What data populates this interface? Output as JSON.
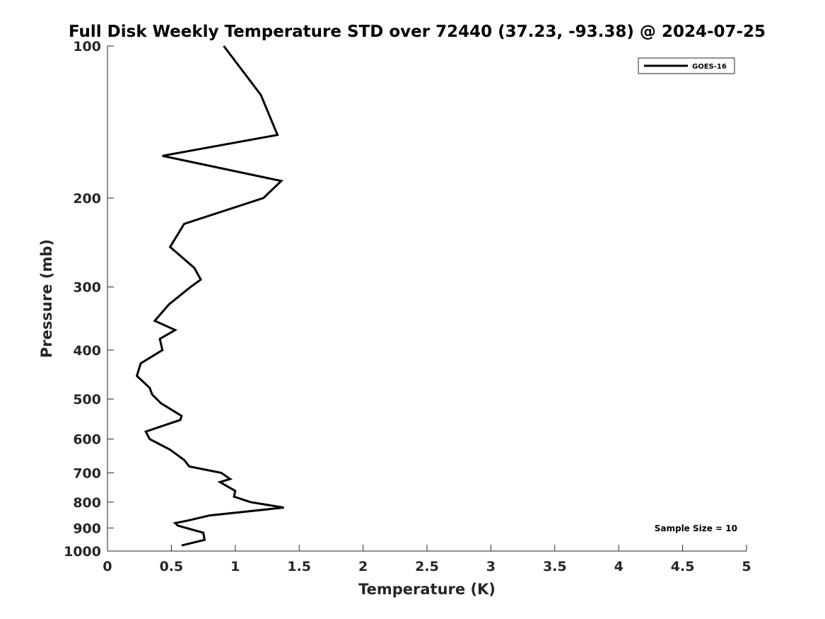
{
  "chart_data": {
    "type": "line",
    "title": "Full Disk Weekly Temperature STD over 72440 (37.23, -93.38) @ 2024-07-25",
    "xlabel": "Temperature (K)",
    "ylabel": "Pressure (mb)",
    "xlim": [
      0,
      5
    ],
    "ylim": [
      100,
      1000
    ],
    "y_scale": "log",
    "y_reversed": true,
    "grid": false,
    "legend_position": "top-right",
    "x_ticks": [
      "0",
      "0.5",
      "1",
      "1.5",
      "2",
      "2.5",
      "3",
      "3.5",
      "4",
      "4.5",
      "5"
    ],
    "y_ticks": [
      "100",
      "200",
      "300",
      "400",
      "500",
      "600",
      "700",
      "800",
      "900",
      "1000"
    ],
    "annotation": "Sample Size = 10",
    "series": [
      {
        "name": "GOES-16",
        "color": "#000000",
        "points": [
          [
            0.91,
            100
          ],
          [
            1.2,
            125
          ],
          [
            1.33,
            150
          ],
          [
            0.43,
            165
          ],
          [
            1.36,
            185
          ],
          [
            1.22,
            200
          ],
          [
            0.6,
            225
          ],
          [
            0.49,
            250
          ],
          [
            0.68,
            275
          ],
          [
            0.73,
            290
          ],
          [
            0.65,
            300
          ],
          [
            0.48,
            325
          ],
          [
            0.37,
            350
          ],
          [
            0.53,
            365
          ],
          [
            0.41,
            380
          ],
          [
            0.43,
            400
          ],
          [
            0.26,
            425
          ],
          [
            0.23,
            450
          ],
          [
            0.33,
            475
          ],
          [
            0.35,
            490
          ],
          [
            0.42,
            510
          ],
          [
            0.58,
            540
          ],
          [
            0.57,
            550
          ],
          [
            0.3,
            580
          ],
          [
            0.33,
            600
          ],
          [
            0.49,
            630
          ],
          [
            0.6,
            660
          ],
          [
            0.64,
            680
          ],
          [
            0.89,
            700
          ],
          [
            0.96,
            720
          ],
          [
            0.88,
            730
          ],
          [
            1.0,
            760
          ],
          [
            0.99,
            780
          ],
          [
            1.12,
            800
          ],
          [
            1.38,
            820
          ],
          [
            0.8,
            850
          ],
          [
            0.63,
            870
          ],
          [
            0.53,
            880
          ],
          [
            0.55,
            890
          ],
          [
            0.75,
            920
          ],
          [
            0.76,
            950
          ],
          [
            0.58,
            975
          ]
        ]
      }
    ]
  }
}
